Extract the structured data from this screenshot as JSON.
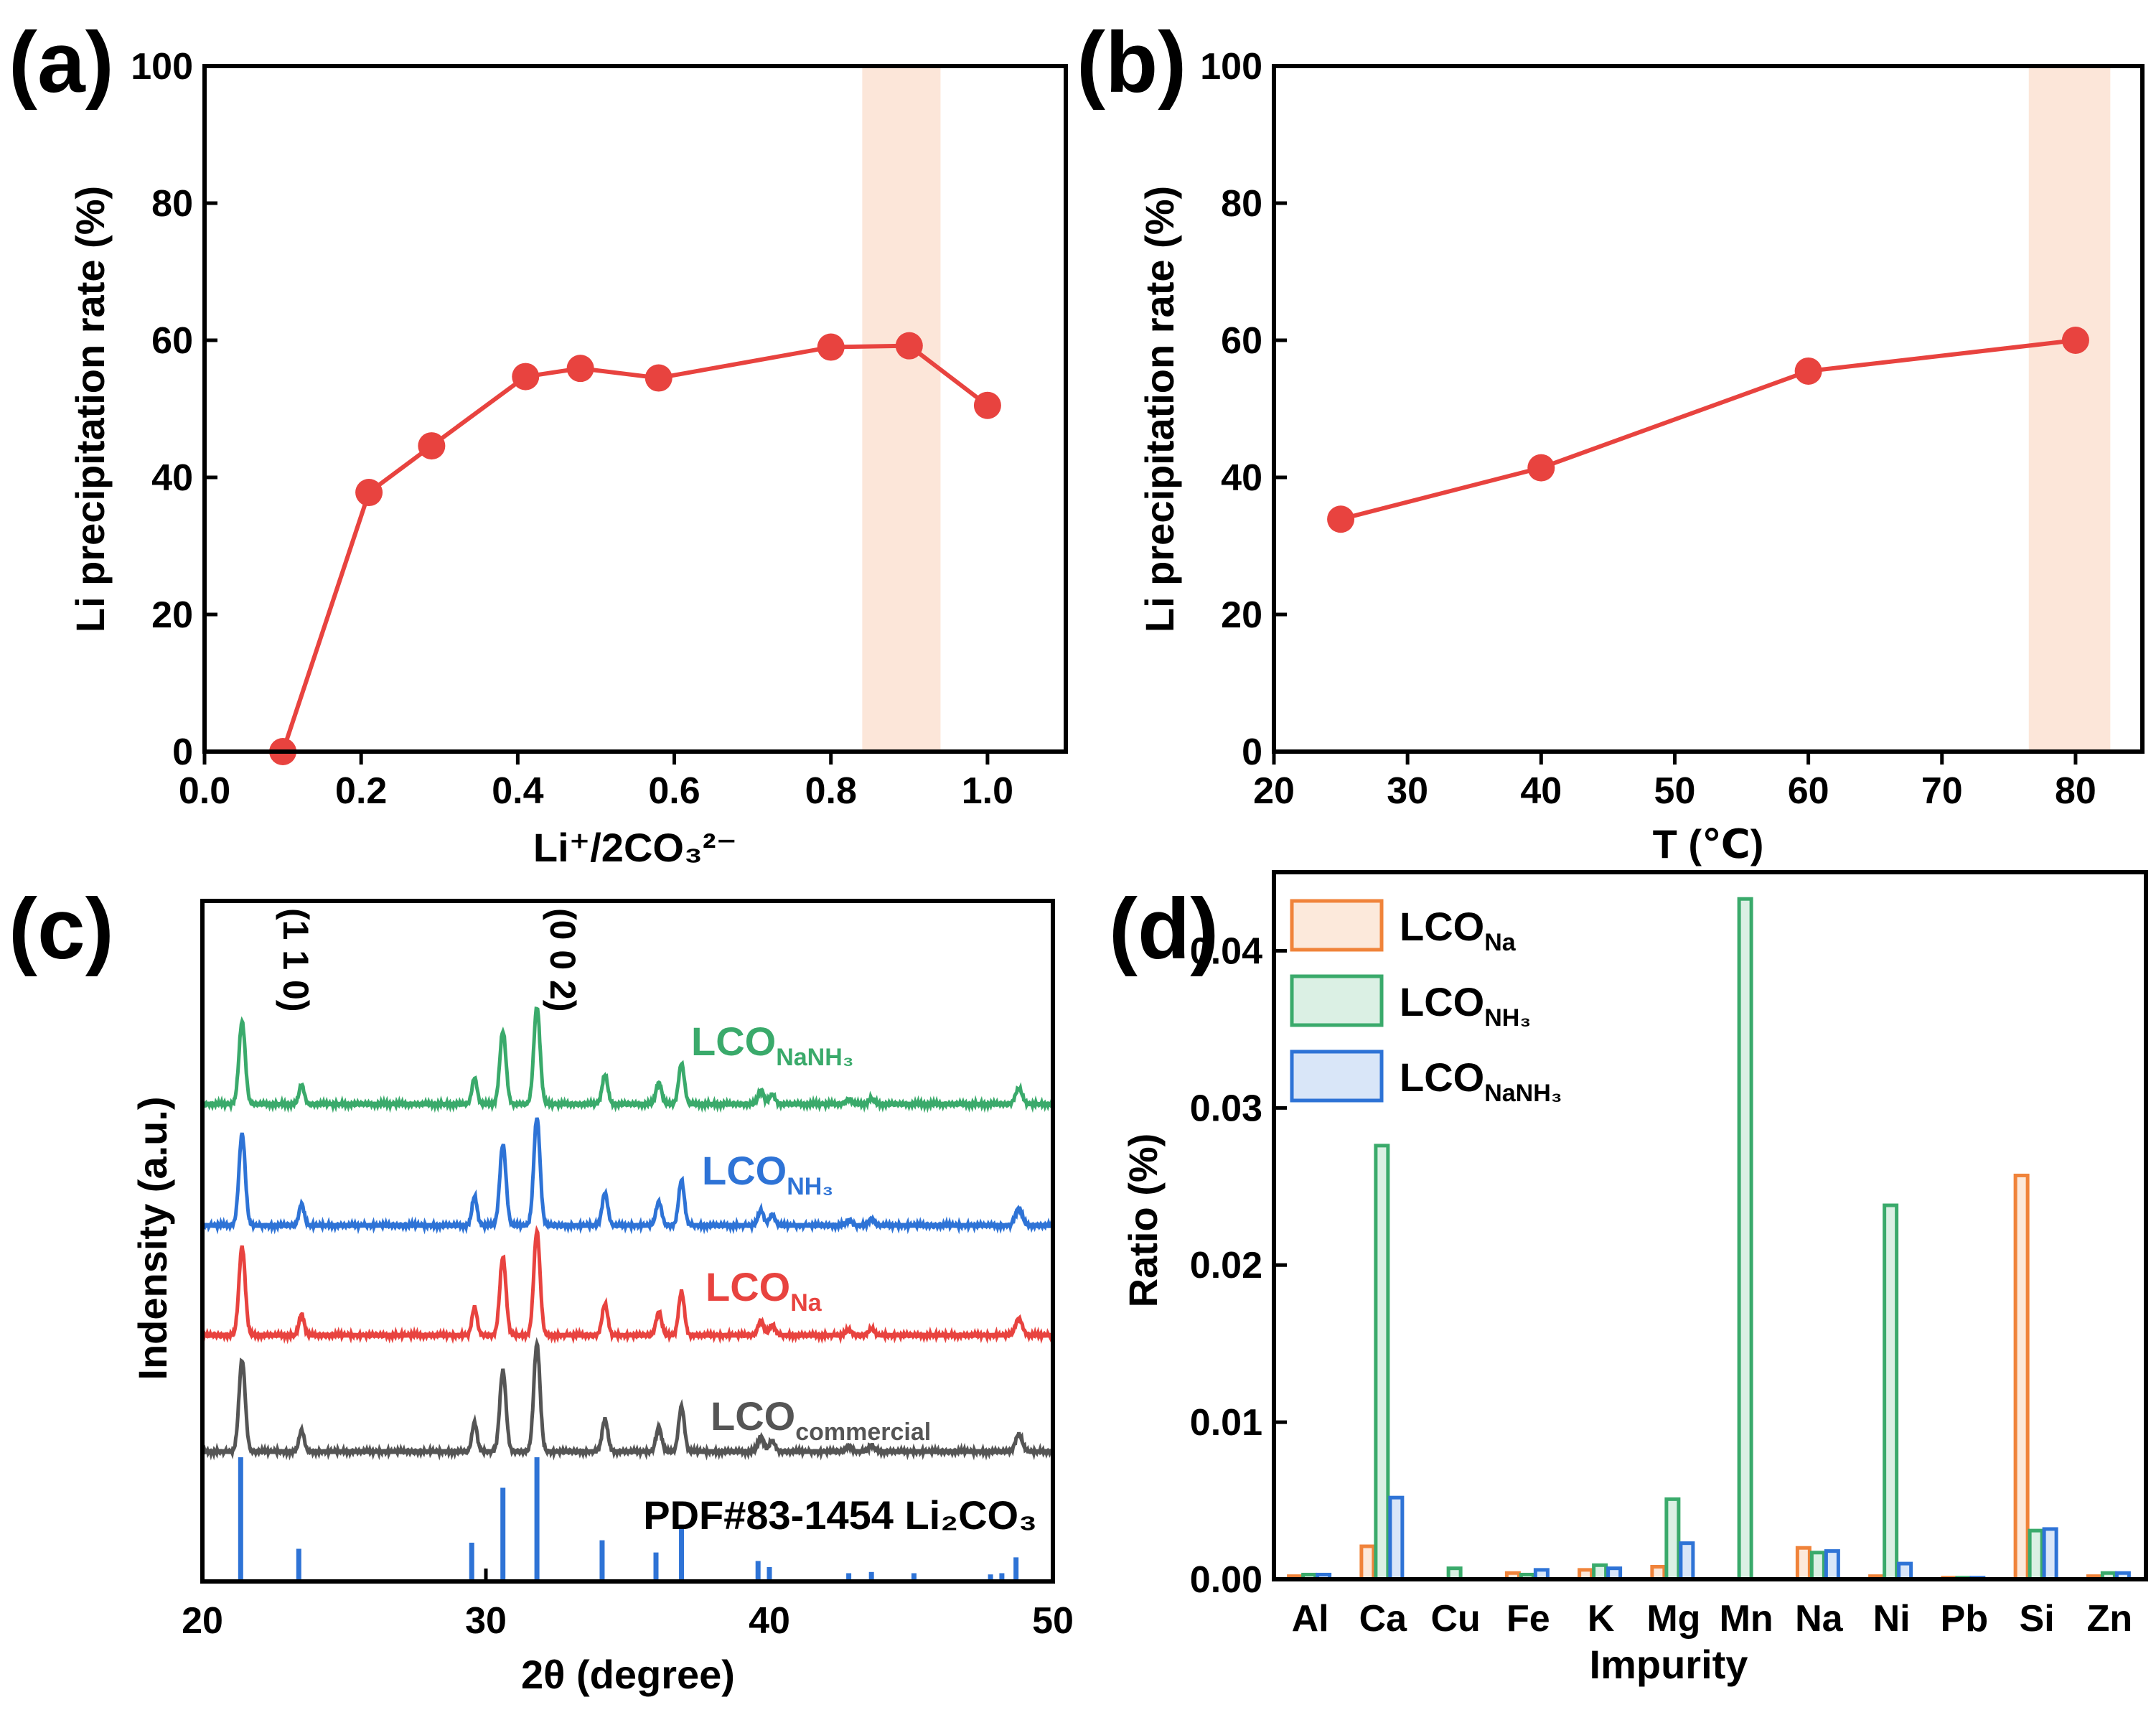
{
  "chart_data": [
    {
      "panel": "(a)",
      "type": "line",
      "xlabel": "Li⁺/2CO₃²⁻",
      "ylabel": "Li precipitation rate (%)",
      "xlim": [
        0.0,
        1.1
      ],
      "ylim": [
        0,
        100
      ],
      "xticks": [
        "0.0",
        "0.2",
        "0.4",
        "0.6",
        "0.8",
        "1.0"
      ],
      "yticks": [
        "0",
        "20",
        "40",
        "60",
        "80",
        "100"
      ],
      "x": [
        0.1,
        0.21,
        0.29,
        0.41,
        0.48,
        0.58,
        0.8,
        0.9,
        1.0
      ],
      "y": [
        0,
        37.8,
        44.6,
        54.7,
        55.9,
        54.5,
        59.0,
        59.2,
        50.5
      ],
      "highlight_x": [
        0.84,
        0.94
      ],
      "line_color": "#e8433f",
      "highlight_color": "#fce6d9"
    },
    {
      "panel": "(b)",
      "type": "line",
      "xlabel": "T (℃)",
      "ylabel": "Li precipitation rate (%)",
      "xlim": [
        20,
        85
      ],
      "ylim": [
        0,
        100
      ],
      "xticks": [
        "20",
        "30",
        "40",
        "50",
        "60",
        "70",
        "80"
      ],
      "yticks": [
        "0",
        "20",
        "40",
        "60",
        "80",
        "100"
      ],
      "x": [
        25,
        40,
        60,
        80
      ],
      "y": [
        33.9,
        41.4,
        55.5,
        60.0
      ],
      "highlight_x": [
        76.5,
        82.6
      ],
      "line_color": "#e8433f",
      "highlight_color": "#fce6d9"
    },
    {
      "panel": "(c)",
      "type": "line",
      "xlabel": "2θ (degree)",
      "ylabel": "Indensity (a.u.)",
      "xlim": [
        20,
        50
      ],
      "xticks": [
        "20",
        "30",
        "40",
        "50"
      ],
      "annotations": [
        "(1 1 0)",
        "(0 0 2)"
      ],
      "series": [
        {
          "name": "LCO",
          "sub": "NaNH₃",
          "color": "#3aaa6b"
        },
        {
          "name": "LCO",
          "sub": "NH₃",
          "color": "#2e73d6"
        },
        {
          "name": "LCO",
          "sub": "Na",
          "color": "#e8433f"
        },
        {
          "name": "LCO",
          "sub": "commercial",
          "color": "#555555"
        }
      ],
      "peaks_2theta": [
        21.4,
        23.5,
        29.6,
        30.6,
        31.8,
        34.2,
        36.1,
        36.9,
        39.7,
        40.1,
        42.8,
        43.6,
        48.8
      ],
      "reference": {
        "label": "PDF#83-1454 Li₂CO₃",
        "color": "#2e73d6",
        "x": [
          21.35,
          23.4,
          29.5,
          30.6,
          31.8,
          34.1,
          36.0,
          36.9,
          39.6,
          40.0,
          42.8,
          43.6,
          45.1,
          47.8,
          48.2,
          48.7
        ],
        "rel_intensity": [
          100,
          25,
          30,
          75,
          100,
          32,
          22,
          42,
          15,
          10,
          5,
          6,
          5,
          4,
          5,
          18
        ]
      }
    },
    {
      "panel": "(d)",
      "type": "bar",
      "xlabel": "Impurity",
      "ylabel": "Ratio (%)",
      "ylim": [
        0,
        0.045
      ],
      "yticks": [
        "0.00",
        "0.01",
        "0.02",
        "0.03",
        "0.04"
      ],
      "categories": [
        "Al",
        "Ca",
        "Cu",
        "Fe",
        "K",
        "Mg",
        "Mn",
        "Na",
        "Ni",
        "Pb",
        "Si",
        "Zn"
      ],
      "series": [
        {
          "name": "LCO",
          "sub": "Na",
          "color": "#f0833a",
          "values": [
            0.0002,
            0.0021,
            0.0,
            0.0004,
            0.0006,
            0.0008,
            0.0,
            0.002,
            0.0002,
            0.0001,
            0.0257,
            0.0002
          ]
        },
        {
          "name": "LCO",
          "sub": "NH₃",
          "color": "#3aaa6b",
          "values": [
            0.0003,
            0.0276,
            0.0007,
            0.0003,
            0.0009,
            0.0051,
            0.0433,
            0.0017,
            0.0238,
            0.0001,
            0.0031,
            0.0004
          ]
        },
        {
          "name": "LCO",
          "sub": "NaNH₃",
          "color": "#2e73d6",
          "values": [
            0.0003,
            0.0052,
            0.0,
            0.0006,
            0.0007,
            0.0023,
            0.0,
            0.0018,
            0.001,
            0.0001,
            0.0032,
            0.0004
          ]
        }
      ]
    }
  ]
}
